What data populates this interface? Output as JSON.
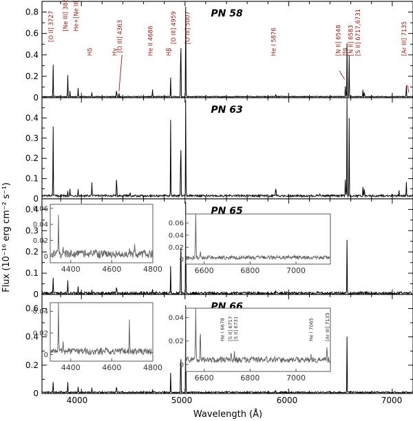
{
  "figure": {
    "x_axis_label": "Wavelength (Å)",
    "y_axis_label": "Flux (10⁻¹⁶ erg cm⁻² s⁻¹)",
    "x_ticks": [
      "4000",
      "5000",
      "6000",
      "7000"
    ]
  },
  "chart_data": {
    "type": "line",
    "xlim": [
      3620,
      7200
    ],
    "xlabel": "Wavelength (Å)",
    "ylabel": "Flux (10⁻¹⁶ erg cm⁻² s⁻¹)",
    "panels": [
      {
        "name": "PN 58",
        "ylim": [
          0,
          0.9
        ],
        "yticks": [
          0,
          0.2,
          0.4,
          0.6,
          0.8
        ],
        "ytick_labels": [
          "0",
          "0.2",
          "0.4",
          "0.6",
          "0.8"
        ],
        "continuum": 0.01,
        "noise": 0.004,
        "lines": [
          {
            "x": 3727,
            "y": 0.35
          },
          {
            "x": 3868,
            "y": 0.25
          },
          {
            "x": 3889,
            "y": 0.06
          },
          {
            "x": 3968,
            "y": 0.09
          },
          {
            "x": 4101,
            "y": 0.04
          },
          {
            "x": 4340,
            "y": 0.1
          },
          {
            "x": 4363,
            "y": 0.03
          },
          {
            "x": 4686,
            "y": 0.08
          },
          {
            "x": 4861,
            "y": 0.18
          },
          {
            "x": 4959,
            "y": 0.85
          },
          {
            "x": 5007,
            "y": 0.88
          },
          {
            "x": 5876,
            "y": 0.03
          },
          {
            "x": 6548,
            "y": 0.14
          },
          {
            "x": 6563,
            "y": 0.5
          },
          {
            "x": 6583,
            "y": 0.46
          },
          {
            "x": 6717,
            "y": 0.06
          },
          {
            "x": 6731,
            "y": 0.07
          },
          {
            "x": 7135,
            "y": 0.13
          }
        ],
        "annotations": [
          {
            "label": "[O II]  3727",
            "x": 3727,
            "y": 0.52
          },
          {
            "label": "[Ne III]  3868",
            "x": 3868,
            "y": 0.62
          },
          {
            "label": "He+[Ne III] 3968",
            "x": 3968,
            "y": 0.62
          },
          {
            "label": "Hδ",
            "x": 4101,
            "y": 0.39
          },
          {
            "label": "Hγ",
            "x": 4340,
            "y": 0.39
          },
          {
            "label": "[O III]  4363",
            "x": 4392,
            "y": 0.42
          },
          {
            "label": "He II 4686",
            "x": 4686,
            "y": 0.39
          },
          {
            "label": "Hβ",
            "x": 4861,
            "y": 0.39
          },
          {
            "label": "[O III]  4959",
            "x": 4910,
            "y": 0.5
          },
          {
            "label": "[O III]  5007",
            "x": 5046,
            "y": 0.5
          },
          {
            "label": "He I  5876",
            "x": 5876,
            "y": 0.39
          },
          {
            "label": "[N II]  6548",
            "x": 6500,
            "y": 0.39
          },
          {
            "label": "Hα",
            "x": 6560,
            "y": 0.39
          },
          {
            "label": "[N II]  6583",
            "x": 6620,
            "y": 0.39
          },
          {
            "label": "[S II]  6717,6731",
            "x": 6690,
            "y": 0.39
          },
          {
            "label": "[Ar III]  7135",
            "x": 7135,
            "y": 0.39
          }
        ]
      },
      {
        "name": "PN 63",
        "ylim": [
          0,
          0.5
        ],
        "yticks": [
          0,
          0.1,
          0.2,
          0.3,
          0.4
        ],
        "ytick_labels": [
          "0",
          "0.1",
          "0.2",
          "0.3",
          "0.4"
        ],
        "continuum": 0.015,
        "noise": 0.005,
        "lines": [
          {
            "x": 3727,
            "y": 0.4
          },
          {
            "x": 3868,
            "y": 0.035
          },
          {
            "x": 3889,
            "y": 0.04
          },
          {
            "x": 3968,
            "y": 0.04
          },
          {
            "x": 4101,
            "y": 0.07
          },
          {
            "x": 4340,
            "y": 0.14
          },
          {
            "x": 4471,
            "y": 0.02
          },
          {
            "x": 4861,
            "y": 0.38
          },
          {
            "x": 4959,
            "y": 0.43
          },
          {
            "x": 5007,
            "y": 0.5
          },
          {
            "x": 5876,
            "y": 0.06
          },
          {
            "x": 6300,
            "y": 0.02
          },
          {
            "x": 6548,
            "y": 0.12
          },
          {
            "x": 6563,
            "y": 0.52
          },
          {
            "x": 6583,
            "y": 0.46
          },
          {
            "x": 6717,
            "y": 0.04
          },
          {
            "x": 6731,
            "y": 0.05
          },
          {
            "x": 7065,
            "y": 0.03
          },
          {
            "x": 7135,
            "y": 0.08
          }
        ]
      },
      {
        "name": "PN 65",
        "ylim": [
          0,
          0.45
        ],
        "yticks": [
          0,
          0.1,
          0.2,
          0.3,
          0.4
        ],
        "ytick_labels": [
          "0",
          "0.1",
          "0.2",
          "0.3",
          "0.4"
        ],
        "continuum": 0.006,
        "noise": 0.006,
        "lines": [
          {
            "x": 3727,
            "y": 0.08
          },
          {
            "x": 3868,
            "y": 0.07
          },
          {
            "x": 3968,
            "y": 0.03
          },
          {
            "x": 4101,
            "y": 0.02
          },
          {
            "x": 4340,
            "y": 0.05
          },
          {
            "x": 4686,
            "y": 0.02
          },
          {
            "x": 4861,
            "y": 0.13
          },
          {
            "x": 4959,
            "y": 0.4
          },
          {
            "x": 5007,
            "y": 0.45
          },
          {
            "x": 5876,
            "y": 0.015
          },
          {
            "x": 6563,
            "y": 0.25
          }
        ],
        "insets": [
          {
            "xlim": [
              4300,
              4800
            ],
            "ylim": [
              -0.008,
              0.065
            ],
            "xticks": [
              "4400",
              "4600",
              "4800"
            ],
            "yticks": [
              "0",
              "0.02",
              "0.04",
              "0.06"
            ],
            "continuum": 0.003,
            "noise": 0.005,
            "lines": [
              {
                "x": 4340,
                "y": 0.045
              },
              {
                "x": 4363,
                "y": 0.012
              },
              {
                "x": 4686,
                "y": 0.01
              },
              {
                "x": 4711,
                "y": 0.008
              }
            ]
          },
          {
            "xlim": [
              6520,
              7150
            ],
            "ylim": [
              -0.008,
              0.075
            ],
            "xticks": [
              "6600",
              "6800",
              "7000"
            ],
            "yticks": [
              "0",
              "0.02",
              "0.04",
              "0.06"
            ],
            "continuum": 0.003,
            "noise": 0.003,
            "lines": [
              {
                "x": 6563,
                "y": 0.09
              },
              {
                "x": 6583,
                "y": 0.012
              }
            ]
          }
        ]
      },
      {
        "name": "PN 66",
        "ylim": [
          0,
          0.7
        ],
        "yticks": [
          0,
          0.2,
          0.4,
          0.6
        ],
        "ytick_labels": [
          "0",
          "0.2",
          "0.4",
          "0.6"
        ],
        "continuum": 0.008,
        "noise": 0.005,
        "lines": [
          {
            "x": 3727,
            "y": 0.08
          },
          {
            "x": 3868,
            "y": 0.09
          },
          {
            "x": 3968,
            "y": 0.04
          },
          {
            "x": 4101,
            "y": 0.03
          },
          {
            "x": 4340,
            "y": 0.06
          },
          {
            "x": 4686,
            "y": 0.02
          },
          {
            "x": 4861,
            "y": 0.14
          },
          {
            "x": 4959,
            "y": 0.45
          },
          {
            "x": 5007,
            "y": 0.65
          },
          {
            "x": 5876,
            "y": 0.02
          },
          {
            "x": 6563,
            "y": 0.4
          }
        ],
        "insets": [
          {
            "xlim": [
              4300,
              4800
            ],
            "ylim": [
              -0.006,
              0.048
            ],
            "xticks": [
              "4400",
              "4600",
              "4800"
            ],
            "yticks": [
              "0",
              "0.02",
              "0.04"
            ],
            "continuum": 0.003,
            "noise": 0.003,
            "lines": [
              {
                "x": 4340,
                "y": 0.048
              },
              {
                "x": 4363,
                "y": 0.01
              },
              {
                "x": 4471,
                "y": 0.006
              },
              {
                "x": 4686,
                "y": 0.028
              }
            ]
          },
          {
            "xlim": [
              6520,
              7150
            ],
            "ylim": [
              -0.006,
              0.048
            ],
            "xticks": [
              "6600",
              "6800",
              "7000"
            ],
            "yticks": [
              "0",
              "0.02",
              "0.04"
            ],
            "continuum": 0.004,
            "noise": 0.0025,
            "lines": [
              {
                "x": 6563,
                "y": 0.048
              },
              {
                "x": 6583,
                "y": 0.025
              },
              {
                "x": 6678,
                "y": 0.004
              },
              {
                "x": 6717,
                "y": 0.006
              },
              {
                "x": 6731,
                "y": 0.007
              },
              {
                "x": 7065,
                "y": 0.005
              },
              {
                "x": 7135,
                "y": 0.01
              }
            ],
            "annotations": [
              {
                "label": "He I  6678",
                "x": 6678
              },
              {
                "label": "[S II]  6717",
                "x": 6712
              },
              {
                "label": "[S II]  6731",
                "x": 6736
              },
              {
                "label": "He I  7065",
                "x": 7065
              },
              {
                "label": "[Ar III]  7135",
                "x": 7135
              }
            ]
          }
        ]
      }
    ]
  }
}
